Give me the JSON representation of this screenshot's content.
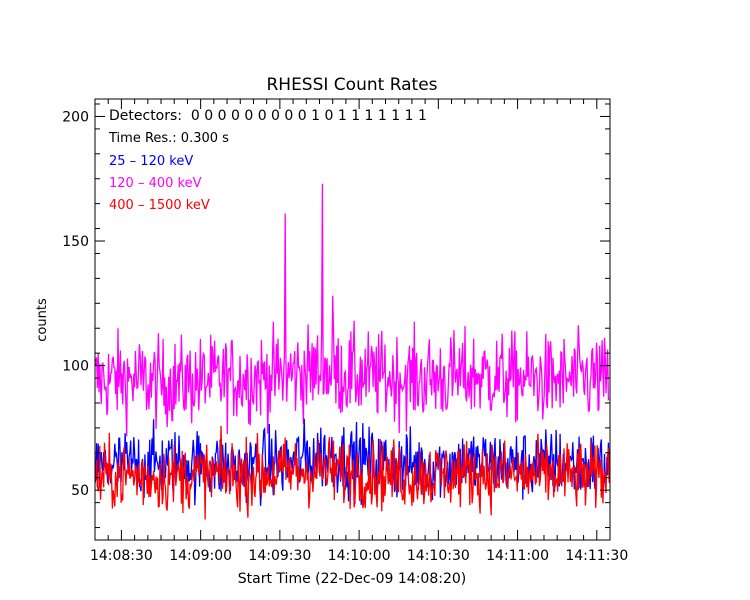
{
  "chart_data": {
    "type": "line",
    "title": "RHESSI Count Rates",
    "xlabel": "Start Time (22-Dec-09 14:08:20)",
    "ylabel": "counts",
    "x_start": "14:08:20",
    "x_end": "14:11:35",
    "x_ticks": [
      "14:08:30",
      "14:09:00",
      "14:09:30",
      "14:10:00",
      "14:10:30",
      "14:11:00",
      "14:11:30"
    ],
    "ylim": [
      30,
      207
    ],
    "y_ticks": [
      50,
      100,
      150,
      200
    ],
    "annotations": {
      "detectors": "Detectors:  0 0 0 0 0 0 0 0 0 1 0 1 1 1 1 1 1 1",
      "time_res": "Time Res.: 0.300 s"
    },
    "series": [
      {
        "name": " 25 – 120 keV",
        "color": "#0000ff",
        "x": [
          "14:08:20",
          "14:08:30",
          "14:08:45",
          "14:09:00",
          "14:09:15",
          "14:09:30",
          "14:09:45",
          "14:10:00",
          "14:10:15",
          "14:10:30",
          "14:10:45",
          "14:11:00",
          "14:11:15",
          "14:11:30",
          "14:11:35"
        ],
        "values": [
          58,
          60,
          61,
          60,
          59,
          61,
          64,
          62,
          60,
          60,
          61,
          60,
          61,
          60,
          60
        ]
      },
      {
        "name": "120 – 400 keV",
        "color": "#ff00ff",
        "x": [
          "14:08:20",
          "14:08:30",
          "14:08:45",
          "14:09:00",
          "14:09:15",
          "14:09:30",
          "14:09:45",
          "14:10:00",
          "14:10:15",
          "14:10:30",
          "14:10:45",
          "14:11:00",
          "14:11:15",
          "14:11:30",
          "14:11:35"
        ],
        "values": [
          94,
          95,
          93,
          94,
          95,
          96,
          98,
          96,
          95,
          95,
          96,
          95,
          94,
          95,
          93
        ],
        "peaks": [
          {
            "x": "14:09:32",
            "y": 161
          },
          {
            "x": "14:09:46",
            "y": 173
          },
          {
            "x": "14:09:50",
            "y": 128
          }
        ]
      },
      {
        "name": "400 – 1500 keV",
        "color": "#ff0000",
        "x": [
          "14:08:20",
          "14:08:30",
          "14:08:45",
          "14:09:00",
          "14:09:15",
          "14:09:30",
          "14:09:45",
          "14:10:00",
          "14:10:15",
          "14:10:30",
          "14:10:45",
          "14:11:00",
          "14:11:15",
          "14:11:30",
          "14:11:35"
        ],
        "values": [
          55,
          56,
          55,
          56,
          56,
          57,
          58,
          57,
          56,
          56,
          57,
          56,
          56,
          55,
          57
        ]
      }
    ],
    "grid": false,
    "legend": "top-left"
  }
}
